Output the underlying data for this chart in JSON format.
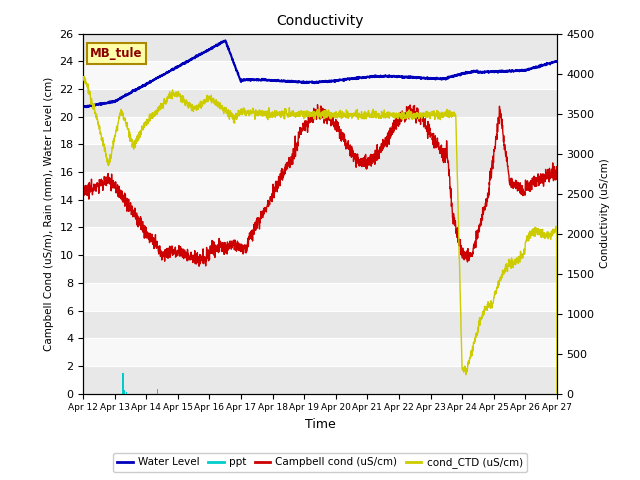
{
  "title": "Conductivity",
  "xlabel": "Time",
  "ylabel_left": "Campbell Cond (uS/m), Rain (mm), Water Level (cm)",
  "ylabel_right": "Conductivity (uS/cm)",
  "ylim_left": [
    0,
    26
  ],
  "ylim_right": [
    0,
    4500
  ],
  "yticks_left": [
    0,
    2,
    4,
    6,
    8,
    10,
    12,
    14,
    16,
    18,
    20,
    22,
    24,
    26
  ],
  "yticks_right": [
    0,
    500,
    1000,
    1500,
    2000,
    2500,
    3000,
    3500,
    4000,
    4500
  ],
  "site_label": "MB_tule",
  "fig_bg_color": "#ffffff",
  "plot_bg_color": "#ffffff",
  "band_color_light": "#f0f0f0",
  "band_color_white": "#e8e8e8",
  "grid_color": "#ffffff",
  "colors": {
    "water_level": "#0000bb",
    "ppt": "#00cccc",
    "campbell_cond": "#cc0000",
    "cond_ctd": "#cccc00"
  },
  "xtick_labels": [
    "Apr 12",
    "Apr 13",
    "Apr 14",
    "Apr 15",
    "Apr 16",
    "Apr 17",
    "Apr 18",
    "Apr 19",
    "Apr 20",
    "Apr 21",
    "Apr 22",
    "Apr 23",
    "Apr 24",
    "Apr 25",
    "Apr 26",
    "Apr 27"
  ]
}
